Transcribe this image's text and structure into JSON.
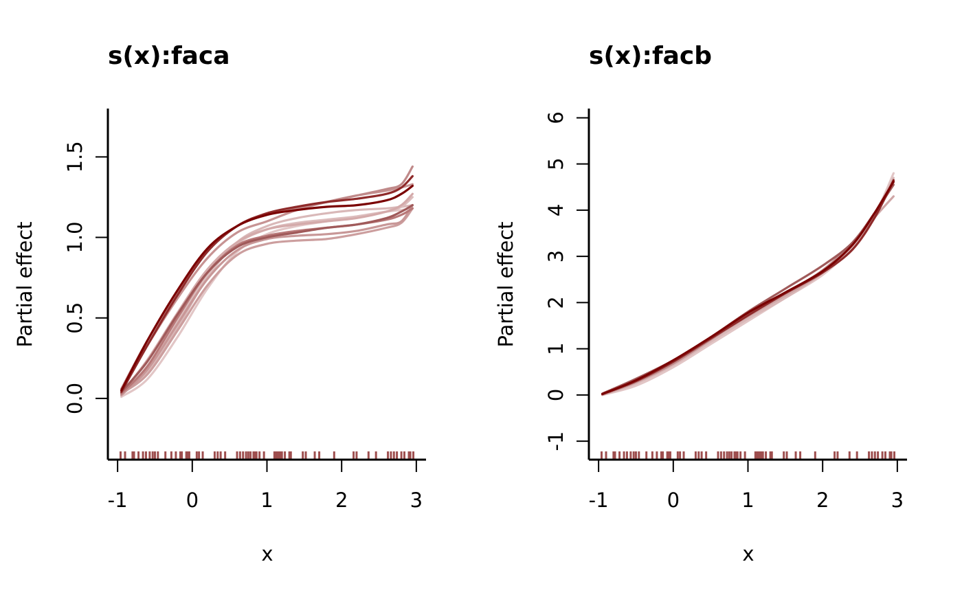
{
  "chart_data": [
    {
      "type": "line",
      "title": "s(x):faca",
      "xlabel": "x",
      "ylabel": "Partial effect",
      "xlim": [
        -1.13,
        3.13
      ],
      "ylim": [
        -0.38,
        1.8
      ],
      "xticks": [
        -1,
        0,
        1,
        2,
        3
      ],
      "xtick_labels": [
        "-1",
        "0",
        "1",
        "2",
        "3"
      ],
      "yticks": [
        0.0,
        0.5,
        1.0,
        1.5
      ],
      "ytick_labels": [
        "0.0",
        "0.5",
        "1.0",
        "1.5"
      ],
      "rug_color": "#9e4f4f",
      "rug": [
        -0.96,
        -0.9,
        -0.8,
        -0.78,
        -0.72,
        -0.66,
        -0.62,
        -0.57,
        -0.53,
        -0.5,
        -0.46,
        -0.36,
        -0.28,
        -0.22,
        -0.16,
        -0.14,
        -0.08,
        -0.06,
        -0.04,
        0.06,
        0.09,
        0.14,
        0.3,
        0.34,
        0.38,
        0.44,
        0.6,
        0.64,
        0.68,
        0.72,
        0.75,
        0.78,
        0.82,
        0.84,
        0.86,
        0.9,
        0.96,
        1.1,
        1.12,
        1.14,
        1.16,
        1.18,
        1.2,
        1.24,
        1.3,
        1.32,
        1.48,
        1.52,
        1.64,
        1.7,
        1.9,
        2.16,
        2.2,
        2.36,
        2.46,
        2.62,
        2.66,
        2.7,
        2.74,
        2.8,
        2.84,
        2.9,
        2.92,
        2.96
      ],
      "x": [
        -0.95,
        -0.6,
        -0.2,
        0.2,
        0.6,
        1.0,
        1.4,
        1.8,
        2.2,
        2.6,
        2.8,
        2.95
      ],
      "series": [
        {
          "color": "#d9b8b8",
          "values": [
            0.03,
            0.17,
            0.44,
            0.75,
            0.97,
            1.07,
            1.12,
            1.15,
            1.17,
            1.18,
            1.19,
            1.2
          ]
        },
        {
          "color": "#e2c6c6",
          "values": [
            0.01,
            0.12,
            0.38,
            0.68,
            0.91,
            1.02,
            1.07,
            1.1,
            1.13,
            1.16,
            1.17,
            1.18
          ]
        },
        {
          "color": "#dcbdbd",
          "values": [
            0.02,
            0.2,
            0.48,
            0.76,
            0.96,
            1.05,
            1.09,
            1.11,
            1.13,
            1.16,
            1.19,
            1.25
          ]
        },
        {
          "color": "#d4aaaa",
          "values": [
            0.03,
            0.24,
            0.53,
            0.8,
            0.97,
            1.05,
            1.08,
            1.1,
            1.12,
            1.16,
            1.2,
            1.27
          ]
        },
        {
          "color": "#cc9e9e",
          "values": [
            0.03,
            0.15,
            0.42,
            0.7,
            0.89,
            0.96,
            0.98,
            0.99,
            1.02,
            1.06,
            1.09,
            1.18
          ]
        },
        {
          "color": "#c89797",
          "values": [
            0.02,
            0.18,
            0.46,
            0.74,
            0.92,
            0.99,
            1.01,
            1.02,
            1.04,
            1.08,
            1.1,
            1.2
          ]
        },
        {
          "color": "#b87878",
          "values": [
            0.03,
            0.2,
            0.5,
            0.78,
            0.95,
            1.01,
            1.04,
            1.06,
            1.08,
            1.11,
            1.14,
            1.18
          ]
        },
        {
          "color": "#a05a5a",
          "values": [
            0.04,
            0.23,
            0.52,
            0.78,
            0.94,
            1.0,
            1.03,
            1.06,
            1.08,
            1.12,
            1.16,
            1.2
          ]
        },
        {
          "color": "#c79393",
          "values": [
            0.05,
            0.33,
            0.62,
            0.87,
            1.03,
            1.1,
            1.17,
            1.22,
            1.26,
            1.29,
            1.31,
            1.33
          ]
        },
        {
          "color": "#c08a8a",
          "values": [
            0.06,
            0.36,
            0.66,
            0.92,
            1.07,
            1.14,
            1.18,
            1.22,
            1.26,
            1.3,
            1.33,
            1.44
          ]
        },
        {
          "color": "#8f2a2a",
          "values": [
            0.04,
            0.33,
            0.64,
            0.91,
            1.07,
            1.15,
            1.19,
            1.22,
            1.24,
            1.27,
            1.31,
            1.38
          ]
        },
        {
          "color": "#7a0000",
          "values": [
            0.05,
            0.36,
            0.67,
            0.93,
            1.07,
            1.14,
            1.17,
            1.19,
            1.2,
            1.23,
            1.27,
            1.32
          ]
        }
      ]
    },
    {
      "type": "line",
      "title": "s(x):facb",
      "xlabel": "x",
      "ylabel": "Partial effect",
      "xlim": [
        -1.13,
        3.13
      ],
      "ylim": [
        -1.4,
        6.2
      ],
      "xticks": [
        -1,
        0,
        1,
        2,
        3
      ],
      "xtick_labels": [
        "-1",
        "0",
        "1",
        "2",
        "3"
      ],
      "yticks": [
        -1,
        0,
        1,
        2,
        3,
        4,
        5,
        6
      ],
      "ytick_labels": [
        "-1",
        "0",
        "1",
        "2",
        "3",
        "4",
        "5",
        "6"
      ],
      "rug_color": "#9e4f4f",
      "rug": [
        -0.96,
        -0.9,
        -0.8,
        -0.78,
        -0.72,
        -0.66,
        -0.62,
        -0.57,
        -0.53,
        -0.5,
        -0.46,
        -0.36,
        -0.28,
        -0.22,
        -0.16,
        -0.14,
        -0.08,
        -0.06,
        -0.04,
        0.06,
        0.09,
        0.14,
        0.3,
        0.34,
        0.38,
        0.44,
        0.6,
        0.64,
        0.68,
        0.72,
        0.75,
        0.78,
        0.82,
        0.84,
        0.86,
        0.9,
        0.96,
        1.1,
        1.12,
        1.14,
        1.16,
        1.18,
        1.2,
        1.24,
        1.3,
        1.32,
        1.48,
        1.52,
        1.64,
        1.7,
        1.9,
        2.16,
        2.2,
        2.36,
        2.46,
        2.62,
        2.66,
        2.7,
        2.74,
        2.8,
        2.84,
        2.9,
        2.92,
        2.96
      ],
      "x": [
        -0.95,
        -0.5,
        0.0,
        0.5,
        1.0,
        1.5,
        2.0,
        2.4,
        2.7,
        2.95
      ],
      "series": [
        {
          "color": "#e2c6c6",
          "values": [
            0.0,
            0.2,
            0.6,
            1.1,
            1.6,
            2.1,
            2.6,
            3.2,
            3.9,
            4.8
          ]
        },
        {
          "color": "#d9b8b8",
          "values": [
            0.0,
            0.25,
            0.65,
            1.15,
            1.65,
            2.1,
            2.65,
            3.3,
            3.95,
            4.7
          ]
        },
        {
          "color": "#cfa6a6",
          "values": [
            0.02,
            0.3,
            0.7,
            1.2,
            1.7,
            2.15,
            2.65,
            3.25,
            3.85,
            4.3
          ]
        },
        {
          "color": "#c08a8a",
          "values": [
            0.01,
            0.28,
            0.68,
            1.2,
            1.75,
            2.2,
            2.7,
            3.3,
            3.9,
            4.6
          ]
        },
        {
          "color": "#a05a5a",
          "values": [
            0.03,
            0.35,
            0.75,
            1.25,
            1.8,
            2.3,
            2.8,
            3.3,
            3.95,
            4.55
          ]
        },
        {
          "color": "#8f2a2a",
          "values": [
            0.02,
            0.3,
            0.72,
            1.22,
            1.72,
            2.2,
            2.65,
            3.15,
            3.85,
            4.65
          ]
        },
        {
          "color": "#7a0000",
          "values": [
            0.02,
            0.32,
            0.75,
            1.25,
            1.78,
            2.22,
            2.68,
            3.25,
            3.95,
            4.62
          ]
        }
      ]
    }
  ]
}
